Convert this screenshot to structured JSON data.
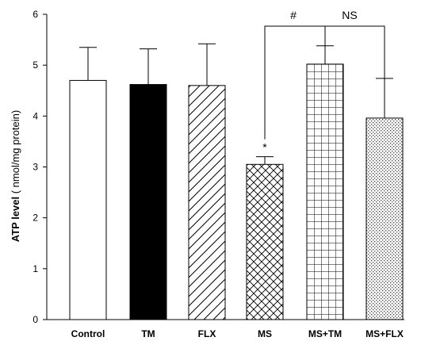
{
  "chart_data": {
    "type": "bar",
    "categories": [
      "Control",
      "TM",
      "FLX",
      "MS",
      "MS+TM",
      "MS+FLX"
    ],
    "values": [
      4.7,
      4.62,
      4.6,
      3.05,
      5.02,
      3.96
    ],
    "errors": [
      0.65,
      0.7,
      0.82,
      0.15,
      0.36,
      0.78
    ],
    "patterns": [
      "white",
      "black",
      "diagonal",
      "crosshatch",
      "grid",
      "dots"
    ],
    "ylabel_bold": "ATP level",
    "ylabel_rest": " ( nmol/mg protein)",
    "xlabel": "",
    "ylim": [
      0,
      6
    ],
    "yticks": [
      0,
      1,
      2,
      3,
      4,
      5,
      6
    ],
    "grid": false,
    "annotations": {
      "star": "*",
      "hash": "#",
      "ns": "NS"
    }
  }
}
